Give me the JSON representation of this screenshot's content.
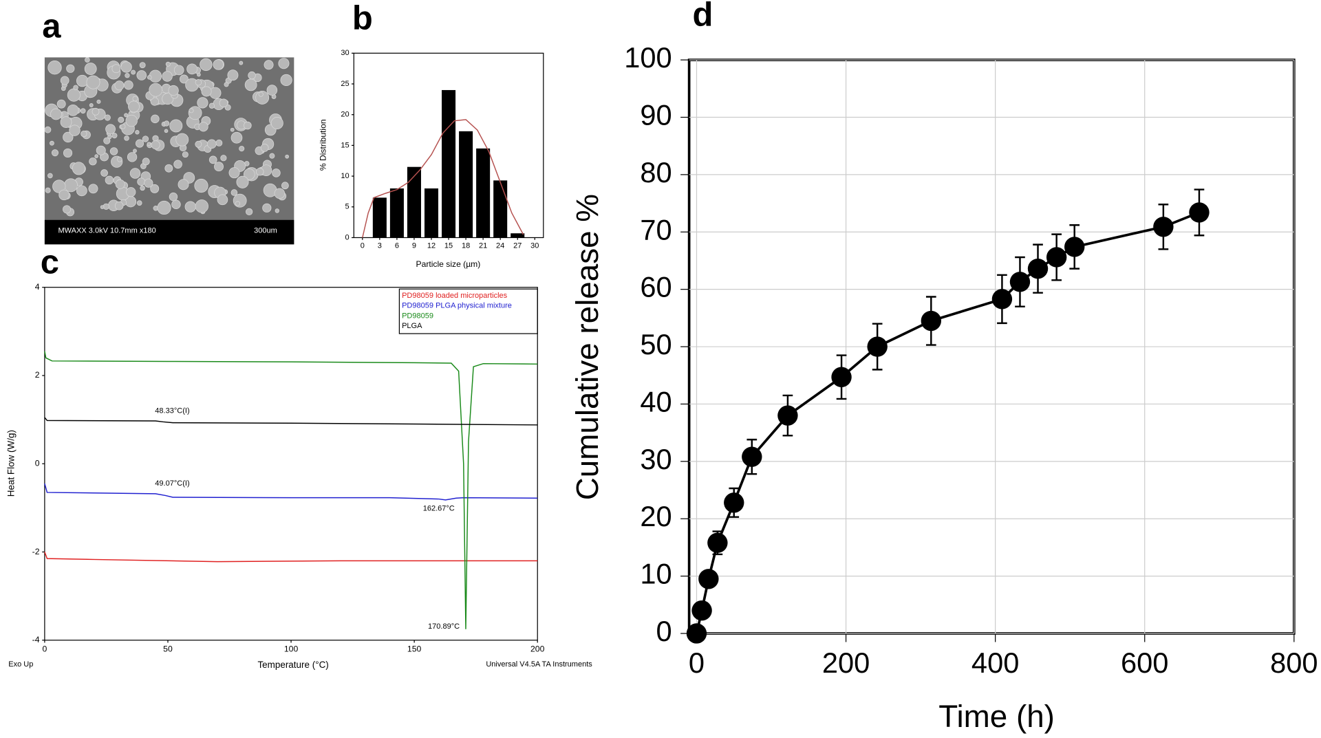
{
  "chart_data": [
    {
      "type": "image",
      "panel_label": "a",
      "caption": "MWAXX 3.0kV 10.7mm x180",
      "scale_label": "300um"
    },
    {
      "type": "bar",
      "panel_label": "b",
      "x_label": "Particle size (µm)",
      "y_label": "% Distribution",
      "x": [
        3,
        6,
        9,
        12,
        15,
        18,
        21,
        24,
        27
      ],
      "values": [
        6.5,
        8,
        11.5,
        8,
        24,
        17.3,
        14.5,
        9.3,
        0.7
      ],
      "color": "#000000",
      "fit": {
        "color": "#b5514f",
        "x": [
          0,
          1,
          2,
          4,
          6,
          8,
          10,
          12,
          14,
          16,
          18,
          20,
          22,
          24,
          26,
          28
        ],
        "values": [
          0,
          4,
          6.5,
          7.2,
          7.8,
          9,
          11,
          13.5,
          17,
          19,
          19.2,
          17.5,
          14,
          9,
          4,
          0.5
        ]
      },
      "xlim": [
        -1.5,
        31.5
      ],
      "xticks": [
        0,
        3,
        6,
        9,
        12,
        15,
        18,
        21,
        24,
        27,
        30
      ],
      "ylim": [
        0,
        30
      ],
      "yticks": [
        0,
        5,
        10,
        15,
        20,
        25,
        30
      ]
    },
    {
      "type": "line",
      "panel_label": "c",
      "x_label": "Temperature (°C)",
      "y_label": "Heat Flow (W/g)",
      "note_left": "Exo Up",
      "note_right": "Universal V4.5A TA Instruments",
      "xlim": [
        0,
        200
      ],
      "xticks": [
        0,
        50,
        100,
        150,
        200
      ],
      "ylim": [
        -4,
        4
      ],
      "yticks": [
        -4,
        -2,
        0,
        2,
        4
      ],
      "series": [
        {
          "name": "PD98059 loaded microparticles",
          "color": "#e02020",
          "x": [
            0,
            1,
            20,
            70,
            120,
            200
          ],
          "values": [
            -2.0,
            -2.15,
            -2.17,
            -2.22,
            -2.2,
            -2.2
          ]
        },
        {
          "name": "PD98059 PLGA physical mixture",
          "color": "#2020d0",
          "x": [
            0,
            1,
            45,
            49,
            52,
            100,
            140,
            160,
            162.67,
            167,
            170,
            200
          ],
          "values": [
            -0.45,
            -0.65,
            -0.68,
            -0.72,
            -0.76,
            -0.77,
            -0.77,
            -0.8,
            -0.82,
            -0.78,
            -0.77,
            -0.78
          ]
        },
        {
          "name": "PD98059",
          "color": "#1a8a1a",
          "x": [
            0,
            0.5,
            3,
            50,
            100,
            150,
            165,
            168,
            170,
            170.89,
            172,
            174,
            178,
            200
          ],
          "values": [
            2.55,
            2.4,
            2.33,
            2.32,
            2.31,
            2.29,
            2.28,
            2.1,
            0,
            -3.75,
            0.5,
            2.2,
            2.27,
            2.26
          ]
        },
        {
          "name": "PLGA",
          "color": "#000000",
          "x": [
            0,
            1,
            45,
            48,
            52,
            100,
            150,
            200
          ],
          "values": [
            1.05,
            0.98,
            0.97,
            0.95,
            0.93,
            0.92,
            0.9,
            0.88
          ]
        }
      ],
      "annotations": [
        "48.33°C(I)",
        "49.07°C(I)",
        "162.67°C",
        "170.89°C"
      ]
    },
    {
      "type": "scatter",
      "panel_label": "d",
      "x_label": "Time (h)",
      "y_label": "Cumulative release %",
      "color": "#000000",
      "grid": true,
      "x": [
        0,
        7,
        16,
        28,
        50,
        74,
        122,
        194,
        242,
        314,
        409,
        433,
        457,
        482,
        506,
        625,
        673
      ],
      "values": [
        0,
        4,
        9.5,
        15.8,
        22.8,
        30.8,
        38,
        44.7,
        50,
        54.5,
        58.3,
        61.3,
        63.6,
        65.6,
        67.4,
        70.9,
        73.4
      ],
      "errors": [
        0,
        0.8,
        1,
        2,
        2.5,
        3,
        3.5,
        3.8,
        4,
        4.2,
        4.2,
        4.3,
        4.2,
        4,
        3.8,
        3.9,
        4
      ],
      "xlim": [
        -10,
        800
      ],
      "xticks": [
        0,
        200,
        400,
        600,
        800
      ],
      "ylim": [
        0,
        100
      ],
      "yticks": [
        0,
        10,
        20,
        30,
        40,
        50,
        60,
        70,
        80,
        90,
        100
      ]
    }
  ]
}
